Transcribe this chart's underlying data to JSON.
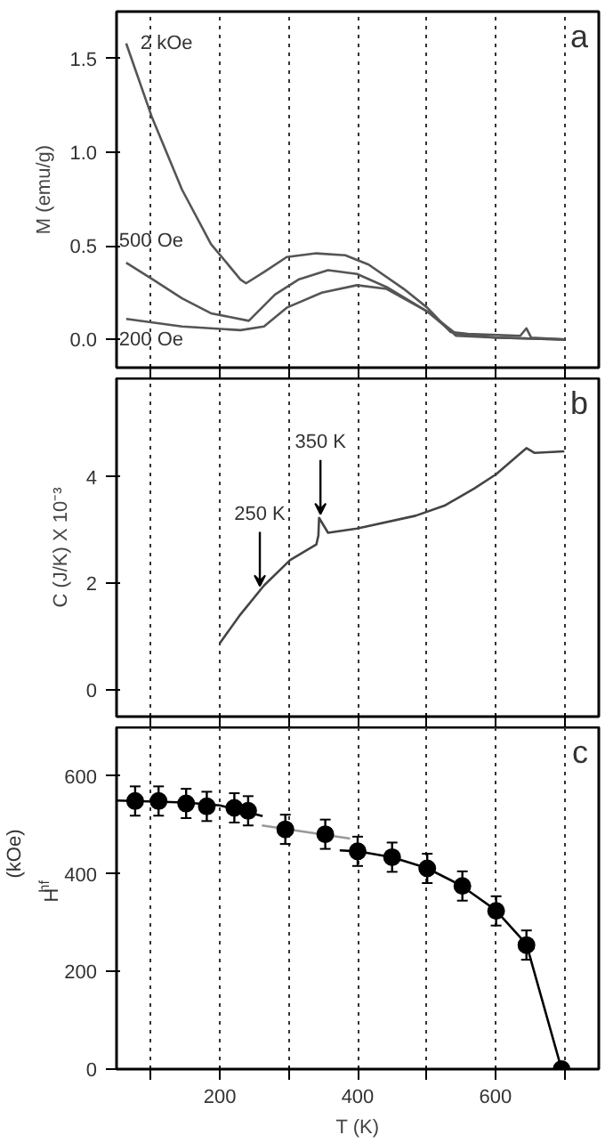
{
  "chart_data": [
    {
      "type": "line",
      "ylabel": "M (emu/g)",
      "xlim": [
        50,
        750
      ],
      "ylim": [
        -0.15,
        1.75
      ],
      "xticks": [
        {
          "value": 100,
          "label": null
        },
        {
          "value": 200,
          "label": null
        },
        {
          "value": 300,
          "label": null
        },
        {
          "value": 400,
          "label": null
        },
        {
          "value": 500,
          "label": null
        },
        {
          "value": 600,
          "label": null
        },
        {
          "value": 700,
          "label": null
        }
      ],
      "yticks": [
        {
          "value": 0,
          "label": "0.0"
        },
        {
          "value": 0.5,
          "label": "0.5"
        },
        {
          "value": 1,
          "label": "1.0"
        },
        {
          "value": 1.5,
          "label": "1.5"
        }
      ],
      "tick_labels": "y",
      "grid": "x",
      "annotations": [
        "a"
      ],
      "series": [
        {
          "name": "2 kOe",
          "color": "#555555",
          "x": [
            64,
            101,
            145,
            187,
            230,
            238,
            264,
            297,
            340,
            382,
            416,
            467,
            501,
            535,
            560,
            636,
            645,
            652,
            700
          ],
          "values": [
            1.58,
            1.19,
            0.8,
            0.51,
            0.32,
            0.3,
            0.36,
            0.44,
            0.46,
            0.45,
            0.4,
            0.27,
            0.17,
            0.04,
            0.03,
            0.02,
            0.06,
            0.01,
            0
          ]
        },
        {
          "name": "500 Oe",
          "color": "#555555",
          "x": [
            64,
            103,
            145,
            187,
            242,
            280,
            314,
            357,
            399,
            442,
            501,
            543,
            600,
            700
          ],
          "values": [
            0.41,
            0.32,
            0.22,
            0.14,
            0.1,
            0.24,
            0.32,
            0.37,
            0.35,
            0.28,
            0.15,
            0.03,
            0.01,
            0
          ]
        },
        {
          "name": "200 Oe",
          "color": "#555555",
          "x": [
            64,
            145,
            230,
            264,
            297,
            348,
            399,
            442,
            501,
            543,
            600,
            700
          ],
          "values": [
            0.11,
            0.07,
            0.05,
            0.07,
            0.17,
            0.25,
            0.29,
            0.27,
            0.15,
            0.02,
            0.01,
            0
          ]
        }
      ]
    },
    {
      "type": "line",
      "ylabel": "C (J/K) X 10⁻³",
      "xlim": [
        50,
        750
      ],
      "ylim": [
        -0.5,
        5.85
      ],
      "xticks": [
        {
          "value": 100,
          "label": null
        },
        {
          "value": 200,
          "label": null
        },
        {
          "value": 300,
          "label": null
        },
        {
          "value": 400,
          "label": null
        },
        {
          "value": 500,
          "label": null
        },
        {
          "value": 600,
          "label": null
        },
        {
          "value": 700,
          "label": null
        }
      ],
      "yticks": [
        0,
        2,
        4
      ],
      "tick_labels": "y",
      "grid": "x",
      "annotations": [
        "b",
        {
          "text": "250 K",
          "x": 258,
          "y": 1.95
        },
        {
          "text": "350 K",
          "x": 346,
          "y": 3.3
        }
      ],
      "series": [
        {
          "color": "#444444",
          "x": [
            200,
            230,
            264,
            302,
            340,
            343,
            344,
            357,
            399,
            484,
            526,
            569,
            601,
            645,
            657,
            700
          ],
          "values": [
            0.88,
            1.42,
            1.96,
            2.44,
            2.73,
            2.9,
            3.23,
            2.95,
            3.03,
            3.27,
            3.46,
            3.78,
            4.05,
            4.54,
            4.45,
            4.48
          ]
        }
      ]
    },
    {
      "type": "scatter",
      "xlabel": "T (K)",
      "ylabel": "H$_{hf}$ (kOe)",
      "xlim": [
        50,
        750
      ],
      "ylim": [
        0,
        700
      ],
      "xticks": [
        {
          "value": 100,
          "label": null
        },
        {
          "value": 200,
          "label": "200"
        },
        {
          "value": 300,
          "label": null
        },
        {
          "value": 400,
          "label": "400"
        },
        {
          "value": 500,
          "label": null
        },
        {
          "value": 600,
          "label": "600"
        },
        {
          "value": 700,
          "label": null
        }
      ],
      "yticks": [
        0,
        200,
        400,
        600
      ],
      "grid": "x",
      "annotations": [
        "c"
      ],
      "series": [
        {
          "type": "line",
          "marker": "none",
          "color": "#000000",
          "x": [
            50,
            150,
            200,
            262
          ],
          "values": [
            550,
            546,
            540,
            518
          ]
        },
        {
          "type": "line",
          "marker": "none",
          "color": "#999999",
          "x": [
            261,
            389
          ],
          "values": [
            499,
            472
          ]
        },
        {
          "type": "line",
          "marker": "none",
          "color": "#000000",
          "x": [
            374,
            400,
            450,
            500,
            550,
            600,
            645,
            696
          ],
          "values": [
            448,
            446,
            434,
            412,
            376,
            326,
            256,
            0
          ]
        },
        {
          "type": "scatter",
          "marker": "circle",
          "color": "#000000",
          "x": [
            77,
            111,
            151,
            181,
            221,
            241,
            295,
            353,
            400,
            450,
            501,
            552,
            601,
            645,
            696
          ],
          "values": [
            549,
            549,
            544,
            538,
            535,
            529,
            491,
            481,
            446,
            434,
            411,
            375,
            324,
            254,
            0
          ],
          "errors": [
            30,
            30,
            30,
            30,
            30,
            30,
            30,
            30,
            30,
            30,
            30,
            30,
            30,
            30,
            null
          ]
        }
      ]
    }
  ]
}
